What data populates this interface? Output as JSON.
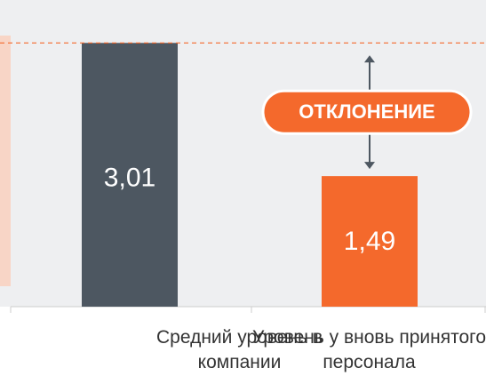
{
  "chart_data": {
    "type": "bar",
    "categories": [
      "Средний уровень в компании",
      "Уровень у вновь принятого персонала"
    ],
    "values": [
      3.01,
      1.49
    ],
    "value_labels": [
      "3,01",
      "1,49"
    ],
    "colors": [
      "#4d5761",
      "#f4692c"
    ],
    "ylim": [
      0,
      3.5
    ],
    "annotation": "ОТКЛОНЕНИЕ"
  }
}
